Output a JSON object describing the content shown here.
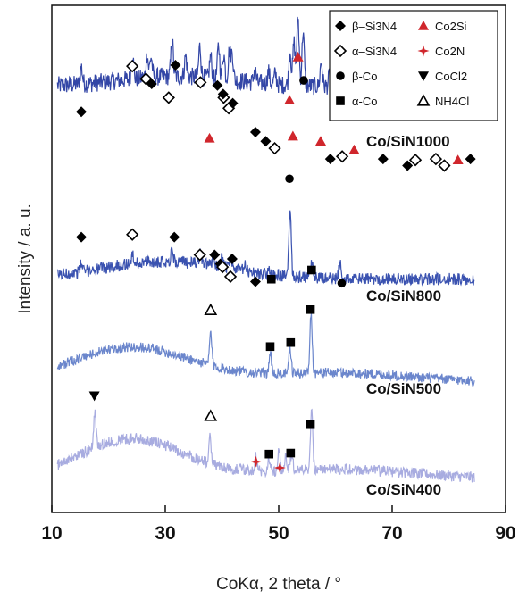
{
  "chart_data": {
    "type": "line",
    "xlabel": "CoKα, 2 theta / °",
    "ylabel": "Intensity / a. u.",
    "xlim": [
      10,
      90
    ],
    "xticks": [
      10,
      30,
      50,
      70,
      90
    ],
    "grid": false,
    "legend_position": "top-right",
    "legend": [
      {
        "key": "beta_si3n4",
        "label": "β–Si3N4",
        "marker": "diamond-filled",
        "color": "#000000"
      },
      {
        "key": "co2si",
        "label": "Co2Si",
        "marker": "triangle-filled",
        "color": "#d0262c"
      },
      {
        "key": "alpha_si3n4",
        "label": "α–Si3N4",
        "marker": "diamond-open",
        "color": "#000000"
      },
      {
        "key": "co2n",
        "label": "Co2N",
        "marker": "star4",
        "color": "#d0262c"
      },
      {
        "key": "beta_co",
        "label": "β-Co",
        "marker": "circle-filled",
        "color": "#000000"
      },
      {
        "key": "cocl2",
        "label": "CoCl2",
        "marker": "triangle-down-filled",
        "color": "#000000"
      },
      {
        "key": "alpha_co",
        "label": "α-Co",
        "marker": "square-filled",
        "color": "#000000"
      },
      {
        "key": "nh4cl",
        "label": "NH4Cl",
        "marker": "triangle-open",
        "color": "#000000"
      }
    ],
    "series": [
      {
        "name": "Co/SiN1000",
        "color": "#3346a6",
        "baseline": 0.84,
        "amplitude": 0.135,
        "noise": 0.018,
        "hump": {
          "center": 32,
          "width": 14,
          "height": 0.02
        },
        "peaks": [
          [
            15.2,
            0.25
          ],
          [
            24.2,
            0.38
          ],
          [
            26.8,
            0.34
          ],
          [
            27.5,
            0.3
          ],
          [
            31.2,
            0.55
          ],
          [
            33.6,
            0.3
          ],
          [
            36.1,
            0.45
          ],
          [
            38,
            0.32
          ],
          [
            39.4,
            0.48
          ],
          [
            40.3,
            0.38
          ],
          [
            41.3,
            0.42
          ],
          [
            41.8,
            0.4
          ],
          [
            45.8,
            0.2
          ],
          [
            48.2,
            0.18
          ],
          [
            49.4,
            0.15
          ],
          [
            52,
            0.5
          ],
          [
            52.7,
            0.62
          ],
          [
            53.4,
            1.0
          ],
          [
            54.3,
            0.8
          ],
          [
            57.5,
            0.35
          ],
          [
            59,
            0.18
          ],
          [
            61.5,
            0.12
          ],
          [
            63.5,
            0.14
          ],
          [
            68.5,
            0.12
          ],
          [
            72.8,
            0.12
          ],
          [
            77.5,
            0.13
          ],
          [
            81.8,
            0.1
          ],
          [
            83.8,
            0.12
          ]
        ],
        "markers": [
          {
            "type": "beta_si3n4",
            "x": 15.2,
            "y": 0.79
          },
          {
            "type": "alpha_si3n4",
            "x": 24.2,
            "y": 0.88
          },
          {
            "type": "alpha_si3n4",
            "x": 26.6,
            "y": 0.855
          },
          {
            "type": "beta_si3n4",
            "x": 27.6,
            "y": 0.845
          },
          {
            "type": "beta_si3n4",
            "x": 31.8,
            "y": 0.882
          },
          {
            "type": "alpha_si3n4",
            "x": 30.6,
            "y": 0.818
          },
          {
            "type": "alpha_si3n4",
            "x": 36.2,
            "y": 0.848
          },
          {
            "type": "co2si",
            "x": 37.8,
            "y": 0.738
          },
          {
            "type": "beta_si3n4",
            "x": 39.2,
            "y": 0.842
          },
          {
            "type": "alpha_si3n4",
            "x": 40.3,
            "y": 0.818
          },
          {
            "type": "beta_si3n4",
            "x": 40.2,
            "y": 0.825
          },
          {
            "type": "alpha_si3n4",
            "x": 41.2,
            "y": 0.797
          },
          {
            "type": "beta_si3n4",
            "x": 41.9,
            "y": 0.807
          },
          {
            "type": "beta_si3n4",
            "x": 45.9,
            "y": 0.75
          },
          {
            "type": "beta_si3n4",
            "x": 47.7,
            "y": 0.732
          },
          {
            "type": "alpha_si3n4",
            "x": 49.3,
            "y": 0.718
          },
          {
            "type": "co2si",
            "x": 51.9,
            "y": 0.813
          },
          {
            "type": "co2si",
            "x": 52.5,
            "y": 0.742
          },
          {
            "type": "co2si",
            "x": 53.4,
            "y": 0.898
          },
          {
            "type": "beta_co",
            "x": 54.4,
            "y": 0.852
          },
          {
            "type": "co2si",
            "x": 57.4,
            "y": 0.732
          },
          {
            "type": "beta_si3n4",
            "x": 59.1,
            "y": 0.697
          },
          {
            "type": "alpha_si3n4",
            "x": 61.2,
            "y": 0.702
          },
          {
            "type": "co2si",
            "x": 63.3,
            "y": 0.715
          },
          {
            "type": "beta_si3n4",
            "x": 68.4,
            "y": 0.697
          },
          {
            "type": "beta_si3n4",
            "x": 72.7,
            "y": 0.684
          },
          {
            "type": "alpha_si3n4",
            "x": 74.1,
            "y": 0.695
          },
          {
            "type": "alpha_si3n4",
            "x": 77.7,
            "y": 0.697
          },
          {
            "type": "alpha_si3n4",
            "x": 79.2,
            "y": 0.684
          },
          {
            "type": "co2si",
            "x": 81.6,
            "y": 0.695
          },
          {
            "type": "beta_si3n4",
            "x": 83.8,
            "y": 0.697
          }
        ]
      },
      {
        "name": "Co/SiN800",
        "color": "#3a52b0",
        "baseline": 0.46,
        "amplitude": 0.135,
        "noise": 0.012,
        "hump": {
          "center": 30,
          "width": 16,
          "height": 0.035
        },
        "peaks": [
          [
            15.2,
            0.12
          ],
          [
            24.2,
            0.12
          ],
          [
            31.2,
            0.17
          ],
          [
            36.2,
            0.18
          ],
          [
            38.5,
            0.15
          ],
          [
            40,
            0.15
          ],
          [
            41.6,
            0.15
          ],
          [
            44,
            0.08
          ],
          [
            48.5,
            0.08
          ],
          [
            52,
            1.0
          ],
          [
            55.8,
            0.22
          ],
          [
            60.8,
            0.25
          ]
        ],
        "markers": [
          {
            "type": "beta_si3n4",
            "x": 15.2,
            "y": 0.543
          },
          {
            "type": "alpha_si3n4",
            "x": 24.2,
            "y": 0.548
          },
          {
            "type": "beta_si3n4",
            "x": 31.6,
            "y": 0.543
          },
          {
            "type": "alpha_si3n4",
            "x": 36.1,
            "y": 0.508
          },
          {
            "type": "beta_si3n4",
            "x": 38.7,
            "y": 0.508
          },
          {
            "type": "beta_si3n4",
            "x": 39.7,
            "y": 0.49
          },
          {
            "type": "alpha_si3n4",
            "x": 40.1,
            "y": 0.484
          },
          {
            "type": "beta_si3n4",
            "x": 41.8,
            "y": 0.5
          },
          {
            "type": "alpha_si3n4",
            "x": 41.5,
            "y": 0.465
          },
          {
            "type": "beta_si3n4",
            "x": 45.9,
            "y": 0.455
          },
          {
            "type": "alpha_co",
            "x": 48.7,
            "y": 0.46
          },
          {
            "type": "beta_co",
            "x": 51.9,
            "y": 0.658
          },
          {
            "type": "alpha_co",
            "x": 55.8,
            "y": 0.478
          },
          {
            "type": "beta_co",
            "x": 61.1,
            "y": 0.452
          }
        ]
      },
      {
        "name": "Co/SiN500",
        "color": "#6b86cc",
        "baseline": 0.255,
        "amplitude": 0.12,
        "noise": 0.01,
        "hump": {
          "center": 24,
          "width": 15,
          "height": 0.07
        },
        "peaks": [
          [
            38,
            0.55
          ],
          [
            48.5,
            0.35
          ],
          [
            52,
            0.42
          ],
          [
            55.7,
            1.0
          ]
        ],
        "markers": [
          {
            "type": "nh4cl",
            "x": 38,
            "y": 0.399
          },
          {
            "type": "alpha_co",
            "x": 48.5,
            "y": 0.327
          },
          {
            "type": "alpha_co",
            "x": 52.1,
            "y": 0.335
          },
          {
            "type": "alpha_co",
            "x": 55.6,
            "y": 0.4
          }
        ]
      },
      {
        "name": "Co/SiN400",
        "color": "#a8ace0",
        "baseline": 0.065,
        "amplitude": 0.12,
        "noise": 0.011,
        "hump": {
          "center": 24,
          "width": 13,
          "height": 0.08
        },
        "peaks": [
          [
            17.6,
            0.6
          ],
          [
            37.9,
            0.45
          ],
          [
            46,
            0.25
          ],
          [
            48.3,
            0.2
          ],
          [
            50,
            0.35
          ],
          [
            51.2,
            0.2
          ],
          [
            52.3,
            0.3
          ],
          [
            55.8,
            1.0
          ]
        ],
        "markers": [
          {
            "type": "cocl2",
            "x": 17.5,
            "y": 0.23
          },
          {
            "type": "nh4cl",
            "x": 38,
            "y": 0.19
          },
          {
            "type": "co2n",
            "x": 46,
            "y": 0.1
          },
          {
            "type": "alpha_co",
            "x": 48.3,
            "y": 0.115
          },
          {
            "type": "co2n",
            "x": 50.2,
            "y": 0.088
          },
          {
            "type": "alpha_co",
            "x": 52.1,
            "y": 0.117
          },
          {
            "type": "alpha_co",
            "x": 55.6,
            "y": 0.173
          }
        ]
      }
    ]
  }
}
